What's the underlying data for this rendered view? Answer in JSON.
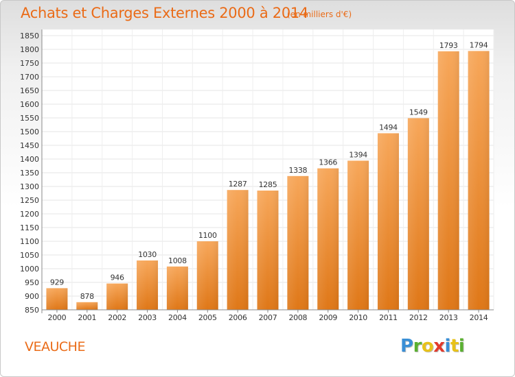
{
  "header": {
    "title": "Achats et Charges Externes 2000 à 2014",
    "subtitle": "(en milliers d'€)"
  },
  "commune": "VEAUCHE",
  "brand": {
    "letters": [
      "P",
      "r",
      "o",
      "x",
      "i",
      "t",
      "i"
    ],
    "colors": [
      "#3a8fd6",
      "#5ab031",
      "#e8c21a",
      "#e23a2c",
      "#3a8fd6",
      "#e8c21a",
      "#5ab031"
    ]
  },
  "colors": {
    "accent": "#ea6b17",
    "bar_light": "#f7a75a",
    "bar_dark": "#df7717"
  },
  "chart_data": {
    "type": "bar",
    "categories": [
      "2000",
      "2001",
      "2002",
      "2003",
      "2004",
      "2005",
      "2006",
      "2007",
      "2008",
      "2009",
      "2010",
      "2011",
      "2012",
      "2013",
      "2014"
    ],
    "values": [
      929,
      878,
      946,
      1030,
      1008,
      1100,
      1287,
      1285,
      1338,
      1366,
      1394,
      1494,
      1549,
      1793,
      1794
    ],
    "data_labels": [
      "929",
      "878",
      "946",
      "1030",
      "1008",
      "1100",
      "1287",
      "1285",
      "1338",
      "1366",
      "1394",
      "1494",
      "1549",
      "1793",
      "1794"
    ],
    "yticks": [
      "850",
      "900",
      "950",
      "1000",
      "1050",
      "1100",
      "1150",
      "1200",
      "1250",
      "1300",
      "1350",
      "1400",
      "1450",
      "1500",
      "1550",
      "1600",
      "1650",
      "1700",
      "1750",
      "1800",
      "1850"
    ],
    "ylim": [
      850,
      1850
    ],
    "grid": true
  }
}
